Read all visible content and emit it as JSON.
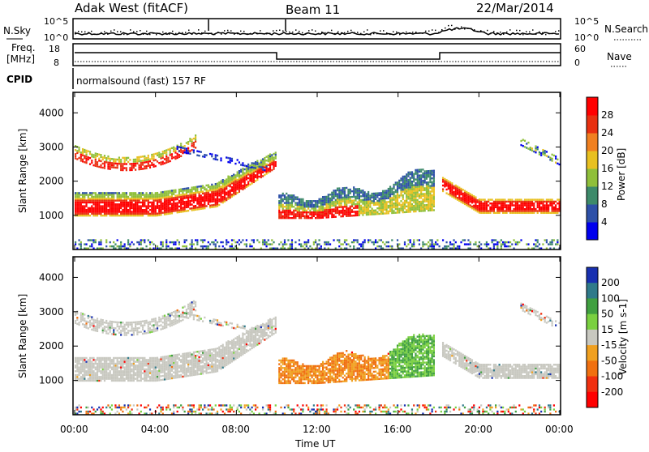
{
  "header": {
    "title": "Adak West (fitACF)",
    "beam": "Beam 11",
    "date": "22/Mar/2014"
  },
  "panels": {
    "nsky_label": "N.Sky",
    "nsearch_label": "N.Search",
    "nsky_ticks": [
      "10^5",
      "10^0"
    ],
    "nsearch_ticks": [
      "10^5",
      "10^0"
    ],
    "freq_label_line1": "Freq.",
    "freq_label_line2": "[MHz]",
    "freq_ticks": [
      "18",
      "8"
    ],
    "nave_label": "Nave",
    "nave_ticks": [
      "60",
      "0"
    ],
    "cpid_label": "CPID",
    "cpid_text": "normalsound (fast) 157 RF"
  },
  "chart_data": [
    {
      "type": "heatmap",
      "id": "power",
      "xlabel": "Time UT",
      "ylabel": "Slant Range [km]",
      "y_ticks": [
        "1000",
        "2000",
        "3000",
        "4000"
      ],
      "colorbar_label": "Power [dB]",
      "colorbar_ticks": [
        "4",
        "8",
        "12",
        "16",
        "20",
        "24",
        "28"
      ],
      "colors": [
        "#0000ee",
        "#2d50a8",
        "#3d8a6a",
        "#8fbf3a",
        "#e8c020",
        "#f08020",
        "#e83010",
        "#ff0000"
      ]
    },
    {
      "type": "heatmap",
      "id": "velocity",
      "xlabel": "Time UT",
      "ylabel": "Slant Range [km]",
      "y_ticks": [
        "1000",
        "2000",
        "3000",
        "4000"
      ],
      "colorbar_label": "Velocity [m s-1]",
      "colorbar_ticks": [
        "200",
        "100",
        "50",
        "15",
        "-15",
        "-50",
        "-100",
        "-200"
      ],
      "colors": [
        "#1830b0",
        "#2f7a8a",
        "#40a040",
        "#7ad040",
        "#c8c8c0",
        "#f0a020",
        "#f07010",
        "#f03010",
        "#ff0000"
      ]
    }
  ],
  "x_axis": {
    "label": "Time UT",
    "ticks": [
      "00:00",
      "04:00",
      "08:00",
      "12:00",
      "16:00",
      "20:00",
      "00:00"
    ]
  }
}
